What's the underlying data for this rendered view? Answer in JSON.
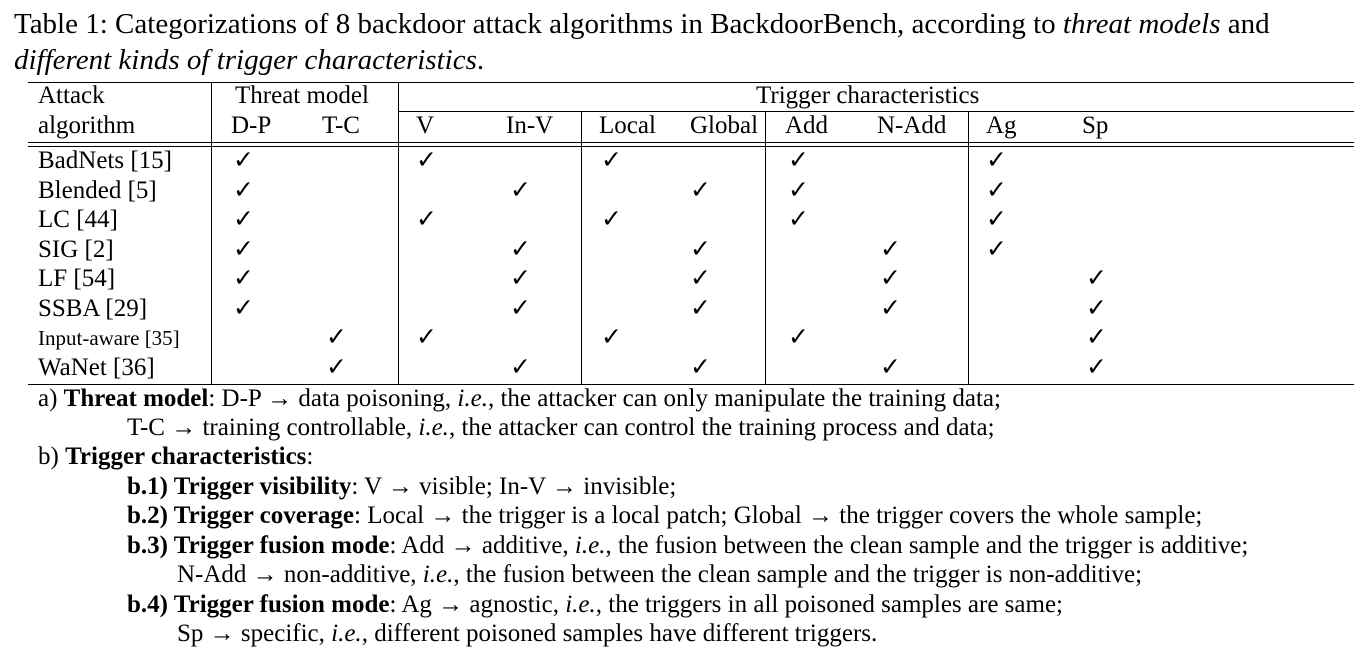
{
  "caption": {
    "lead": "Table 1: Categorizations of 8 backdoor attack algorithms in BackdoorBench, according to ",
    "em1": "threat models",
    "mid": " and ",
    "em2": "different kinds of trigger characteristics",
    "end": "."
  },
  "header": {
    "attack_line1": "Attack",
    "attack_line2": "algorithm",
    "threat_model": "Threat model",
    "trigger_characteristics": "Trigger characteristics",
    "columns": [
      "D-P",
      "T-C",
      "V",
      "In-V",
      "Local",
      "Global",
      "Add",
      "N-Add",
      "Ag",
      "Sp"
    ]
  },
  "check_symbol": "✓",
  "rows": [
    {
      "name": "BadNets [15]",
      "checks": [
        1,
        0,
        1,
        0,
        1,
        0,
        1,
        0,
        1,
        0
      ]
    },
    {
      "name": "Blended [5]",
      "checks": [
        1,
        0,
        0,
        1,
        0,
        1,
        1,
        0,
        1,
        0
      ]
    },
    {
      "name": "LC [44]",
      "checks": [
        1,
        0,
        1,
        0,
        1,
        0,
        1,
        0,
        1,
        0
      ]
    },
    {
      "name": "SIG [2]",
      "checks": [
        1,
        0,
        0,
        1,
        0,
        1,
        0,
        1,
        1,
        0
      ]
    },
    {
      "name": "LF [54]",
      "checks": [
        1,
        0,
        0,
        1,
        0,
        1,
        0,
        1,
        0,
        1
      ]
    },
    {
      "name": "SSBA [29]",
      "checks": [
        1,
        0,
        0,
        1,
        0,
        1,
        0,
        1,
        0,
        1
      ]
    },
    {
      "name": "Input-aware [35]",
      "checks": [
        0,
        1,
        1,
        0,
        1,
        0,
        1,
        0,
        0,
        1
      ]
    },
    {
      "name": "WaNet [36]",
      "checks": [
        0,
        1,
        0,
        1,
        0,
        1,
        0,
        1,
        0,
        1
      ]
    }
  ],
  "notes": [
    {
      "prefix": "a) ",
      "bold": "Threat model",
      "text1": ": D-P → data poisoning, ",
      "ie": "i.e.",
      "text2": ", the attacker can only manipulate the training data;"
    },
    {
      "prefix": "",
      "bold": "",
      "text1": "T-C → training controllable, ",
      "ie": "i.e.",
      "text2": ", the attacker can control the training process and data;"
    },
    {
      "prefix": "b) ",
      "bold": "Trigger characteristics",
      "text1": ":",
      "ie": "",
      "text2": ""
    },
    {
      "prefix": "",
      "bold": "b.1) Trigger visibility",
      "text1": ": V → visible; In-V → invisible;",
      "ie": "",
      "text2": ""
    },
    {
      "prefix": "",
      "bold": "b.2) Trigger coverage",
      "text1": ": Local → the trigger is a local patch; Global → the trigger covers the whole sample;",
      "ie": "",
      "text2": ""
    },
    {
      "prefix": "",
      "bold": "b.3) Trigger fusion mode",
      "text1": ": Add → additive, ",
      "ie": "i.e.",
      "text2": ", the fusion between the clean sample and the trigger is additive;"
    },
    {
      "prefix": "",
      "bold": "",
      "text1": "N-Add → non-additive, ",
      "ie": "i.e.",
      "text2": ", the fusion between the clean sample and the trigger is non-additive;"
    },
    {
      "prefix": "",
      "bold": "b.4) Trigger fusion mode",
      "text1": ": Ag → agnostic, ",
      "ie": "i.e.",
      "text2": ", the triggers in all poisoned samples are same;"
    },
    {
      "prefix": "",
      "bold": "",
      "text1": "Sp → specific, ",
      "ie": "i.e.",
      "text2": ", different poisoned samples have different triggers."
    }
  ]
}
